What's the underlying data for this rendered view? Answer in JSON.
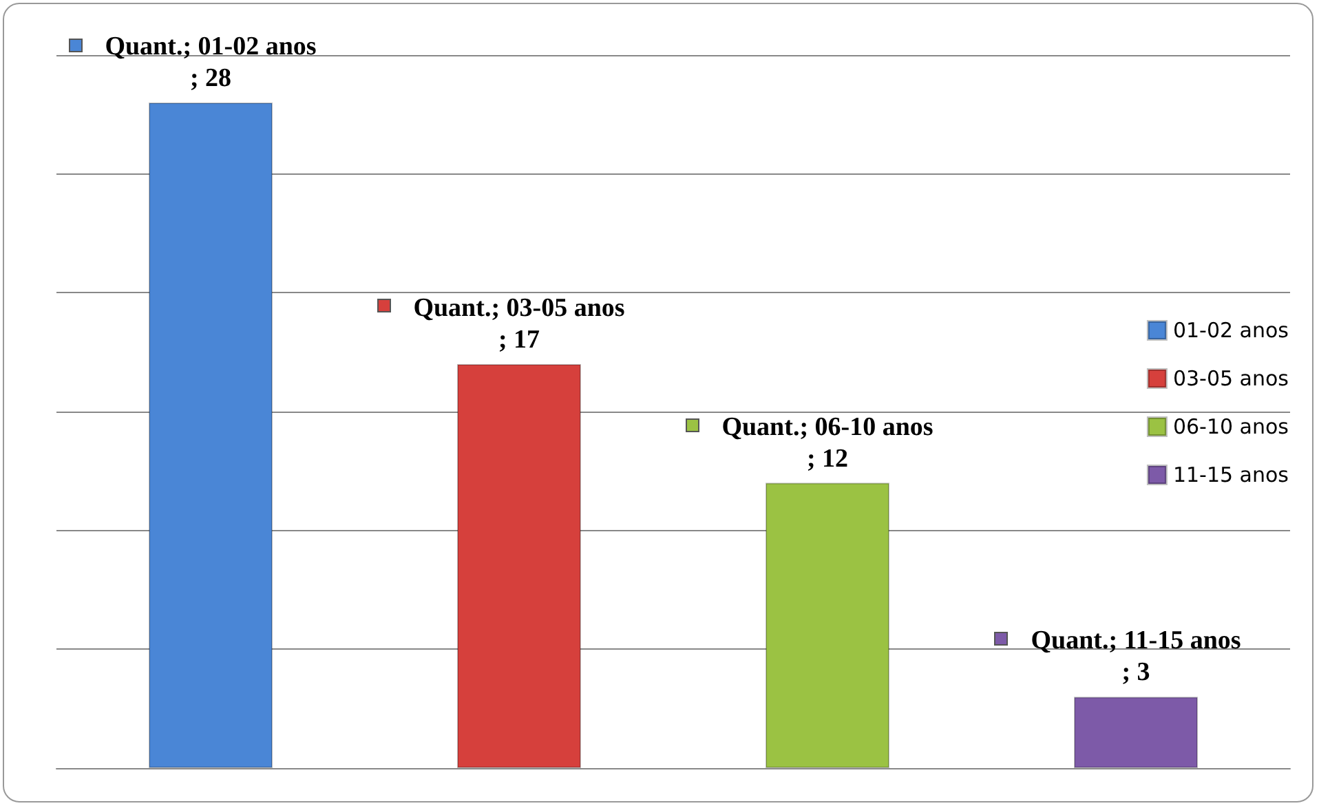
{
  "chart_data": {
    "type": "bar",
    "categories": [
      null,
      null,
      null,
      null
    ],
    "series": [
      {
        "name": "01-02 anos",
        "color": "#4a86d6",
        "values": [
          28,
          null,
          null,
          null
        ],
        "value_labels": [
          "Quant.; 01-02 anos; 28",
          null,
          null,
          null
        ]
      },
      {
        "name": "03-05 anos",
        "color": "#d6403c",
        "values": [
          null,
          17,
          null,
          null
        ],
        "value_labels": [
          null,
          "Quant.; 03-05 anos; 17",
          null,
          null
        ]
      },
      {
        "name": "06-10 anos",
        "color": "#9bc243",
        "values": [
          null,
          null,
          12,
          null
        ],
        "value_labels": [
          null,
          null,
          "Quant.; 06-10 anos; 12",
          null
        ]
      },
      {
        "name": "11-15 anos",
        "color": "#7d5aa8",
        "values": [
          null,
          null,
          null,
          3
        ],
        "value_labels": [
          null,
          null,
          null,
          "Quant.; 11-15 anos; 3"
        ]
      }
    ],
    "stacked": true,
    "ylim": [
      0,
      30
    ],
    "yticks": [
      0,
      5,
      10,
      15,
      20,
      25,
      30
    ],
    "tick_labels": false,
    "grid": "y",
    "legend": "right"
  }
}
